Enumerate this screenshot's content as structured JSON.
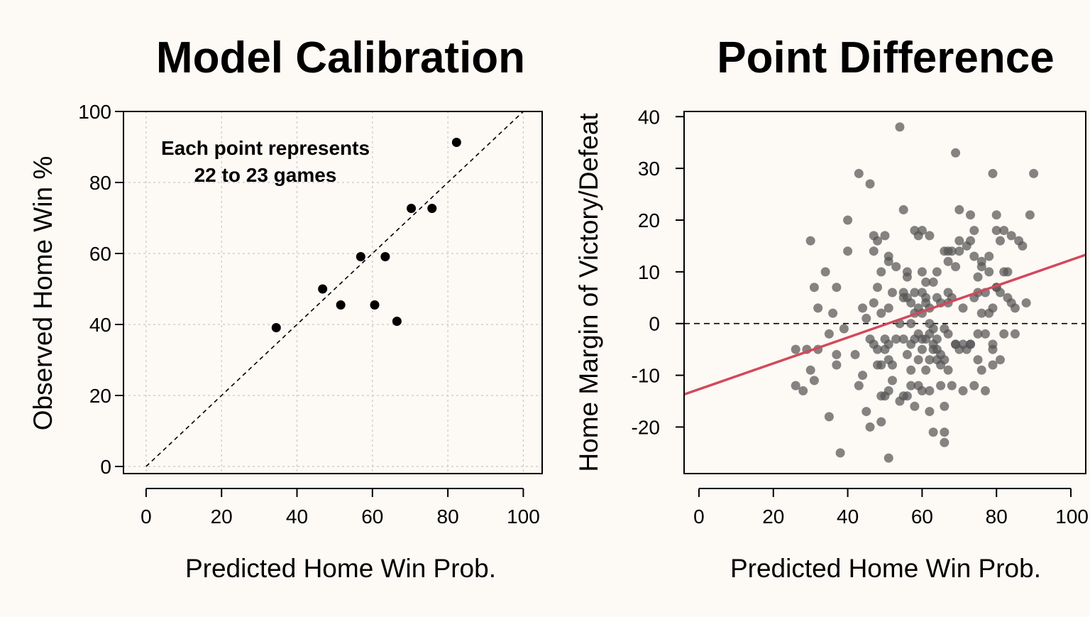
{
  "chart_data": [
    {
      "type": "scatter",
      "title": "Model Calibration",
      "xlabel": "Predicted Home Win Prob.",
      "ylabel": "Observed Home Win %",
      "xlim": [
        -6,
        105
      ],
      "ylim": [
        -2,
        100
      ],
      "x_ticks": [
        "0",
        "20",
        "40",
        "60",
        "80",
        "100"
      ],
      "y_ticks": [
        "0",
        "20",
        "40",
        "60",
        "80",
        "100"
      ],
      "grid": true,
      "reference_line": "y = x (dashed)",
      "annotation": [
        "Each point represents",
        "22 to 23 games"
      ],
      "point_color": "#000000",
      "points": [
        {
          "x": 34.5,
          "y": 39.1
        },
        {
          "x": 46.8,
          "y": 50.0
        },
        {
          "x": 51.6,
          "y": 45.5
        },
        {
          "x": 56.9,
          "y": 59.1
        },
        {
          "x": 60.6,
          "y": 45.5
        },
        {
          "x": 63.4,
          "y": 59.1
        },
        {
          "x": 66.5,
          "y": 40.9
        },
        {
          "x": 70.3,
          "y": 72.7
        },
        {
          "x": 75.8,
          "y": 72.7
        },
        {
          "x": 82.3,
          "y": 91.3
        }
      ]
    },
    {
      "type": "scatter",
      "title": "Point Difference",
      "xlabel": "Predicted Home Win Prob.",
      "ylabel": "Home Margin of Victory/Defeat",
      "xlim": [
        -4,
        104
      ],
      "ylim": [
        -29,
        41
      ],
      "x_ticks": [
        "0",
        "20",
        "40",
        "60",
        "80",
        "100"
      ],
      "y_ticks": [
        "40",
        "30",
        "20",
        "10",
        "0",
        "-10",
        "-20"
      ],
      "grid": false,
      "zero_line": "dashed at y = 0",
      "point_color": "#555555",
      "fit_line": {
        "color": "#d1495b",
        "intercept": -12.7,
        "slope": 0.25
      },
      "points": [
        [
          26,
          -5
        ],
        [
          26,
          -12
        ],
        [
          28,
          -13
        ],
        [
          29,
          -5
        ],
        [
          30,
          16
        ],
        [
          30,
          -9
        ],
        [
          31,
          -11
        ],
        [
          31,
          7
        ],
        [
          32,
          3
        ],
        [
          32,
          -5
        ],
        [
          34,
          10
        ],
        [
          35,
          -18
        ],
        [
          35,
          -2
        ],
        [
          36,
          2
        ],
        [
          37,
          -8
        ],
        [
          37,
          7
        ],
        [
          37,
          -6
        ],
        [
          38,
          -25
        ],
        [
          39,
          -1
        ],
        [
          40,
          20
        ],
        [
          40,
          14
        ],
        [
          42,
          -6
        ],
        [
          43,
          29
        ],
        [
          43,
          -12
        ],
        [
          44,
          3
        ],
        [
          44,
          -10
        ],
        [
          45,
          -17
        ],
        [
          45,
          1
        ],
        [
          46,
          -3
        ],
        [
          46,
          -20
        ],
        [
          46,
          27
        ],
        [
          47,
          17
        ],
        [
          47,
          14
        ],
        [
          47,
          4
        ],
        [
          47,
          -4
        ],
        [
          48,
          -5
        ],
        [
          48,
          -8
        ],
        [
          48,
          7
        ],
        [
          48,
          16
        ],
        [
          49,
          2
        ],
        [
          49,
          -19
        ],
        [
          49,
          -8
        ],
        [
          49,
          10
        ],
        [
          49,
          -14
        ],
        [
          50,
          -14
        ],
        [
          50,
          17
        ],
        [
          50,
          -5
        ],
        [
          50,
          -3
        ],
        [
          51,
          3
        ],
        [
          51,
          13
        ],
        [
          51,
          -4
        ],
        [
          51,
          -7
        ],
        [
          51,
          -13
        ],
        [
          51,
          -26
        ],
        [
          51,
          12
        ],
        [
          52,
          6
        ],
        [
          52,
          -11
        ],
        [
          52,
          -8
        ],
        [
          53,
          11
        ],
        [
          53,
          -3
        ],
        [
          54,
          -15
        ],
        [
          54,
          0
        ],
        [
          54,
          38
        ],
        [
          55,
          6
        ],
        [
          55,
          5
        ],
        [
          55,
          -3
        ],
        [
          55,
          22
        ],
        [
          55,
          -14
        ],
        [
          56,
          9
        ],
        [
          56,
          -14
        ],
        [
          56,
          5
        ],
        [
          56,
          -6
        ],
        [
          56,
          10
        ],
        [
          57,
          -12
        ],
        [
          57,
          4
        ],
        [
          57,
          -4
        ],
        [
          57,
          -9
        ],
        [
          57,
          0
        ],
        [
          58,
          18
        ],
        [
          58,
          2
        ],
        [
          58,
          -3
        ],
        [
          58,
          6
        ],
        [
          58,
          -16
        ],
        [
          59,
          17
        ],
        [
          59,
          -12
        ],
        [
          59,
          3
        ],
        [
          59,
          -2
        ],
        [
          59,
          -7
        ],
        [
          60,
          18
        ],
        [
          60,
          -5
        ],
        [
          60,
          6
        ],
        [
          60,
          10
        ],
        [
          60,
          -3
        ],
        [
          60,
          -13
        ],
        [
          60,
          2
        ],
        [
          61,
          -9
        ],
        [
          61,
          8
        ],
        [
          61,
          -3
        ],
        [
          61,
          5
        ],
        [
          61,
          4
        ],
        [
          62,
          -7
        ],
        [
          62,
          17
        ],
        [
          62,
          0
        ],
        [
          62,
          -13
        ],
        [
          62,
          -17
        ],
        [
          62,
          -2
        ],
        [
          62,
          3
        ],
        [
          63,
          -5
        ],
        [
          63,
          8
        ],
        [
          63,
          -4
        ],
        [
          63,
          -1
        ],
        [
          63,
          -21
        ],
        [
          64,
          -3
        ],
        [
          64,
          5
        ],
        [
          64,
          10
        ],
        [
          64,
          -5
        ],
        [
          64,
          -7
        ],
        [
          65,
          -12
        ],
        [
          65,
          -8
        ],
        [
          65,
          -6
        ],
        [
          65,
          4
        ],
        [
          66,
          -21
        ],
        [
          66,
          -7
        ],
        [
          66,
          -16
        ],
        [
          66,
          14
        ],
        [
          66,
          -23
        ],
        [
          66,
          -1
        ],
        [
          67,
          12
        ],
        [
          67,
          4
        ],
        [
          67,
          6
        ],
        [
          67,
          -2
        ],
        [
          67,
          -9
        ],
        [
          67,
          14
        ],
        [
          68,
          -12
        ],
        [
          68,
          5
        ],
        [
          68,
          14
        ],
        [
          69,
          33
        ],
        [
          69,
          -4
        ],
        [
          69,
          11
        ],
        [
          69,
          -4
        ],
        [
          70,
          16
        ],
        [
          70,
          14
        ],
        [
          70,
          22
        ],
        [
          70,
          -5
        ],
        [
          71,
          -13
        ],
        [
          71,
          3
        ],
        [
          71,
          -4
        ],
        [
          72,
          -5
        ],
        [
          72,
          15
        ],
        [
          73,
          16
        ],
        [
          73,
          -4
        ],
        [
          73,
          21
        ],
        [
          73,
          -4
        ],
        [
          74,
          5
        ],
        [
          74,
          13
        ],
        [
          74,
          -12
        ],
        [
          74,
          18
        ],
        [
          75,
          9
        ],
        [
          75,
          -7
        ],
        [
          75,
          -2
        ],
        [
          75,
          6
        ],
        [
          76,
          12
        ],
        [
          76,
          2
        ],
        [
          76,
          -9
        ],
        [
          76,
          11
        ],
        [
          77,
          -2
        ],
        [
          77,
          -13
        ],
        [
          77,
          6
        ],
        [
          78,
          2
        ],
        [
          78,
          10
        ],
        [
          78,
          13
        ],
        [
          79,
          29
        ],
        [
          79,
          -8
        ],
        [
          79,
          -4
        ],
        [
          79,
          3
        ],
        [
          79,
          -5
        ],
        [
          80,
          18
        ],
        [
          80,
          21
        ],
        [
          80,
          7
        ],
        [
          80,
          7
        ],
        [
          81,
          16
        ],
        [
          81,
          6
        ],
        [
          81,
          -7
        ],
        [
          82,
          -2
        ],
        [
          82,
          18
        ],
        [
          82,
          10
        ],
        [
          83,
          10
        ],
        [
          83,
          5
        ],
        [
          84,
          4
        ],
        [
          84,
          17
        ],
        [
          85,
          3
        ],
        [
          85,
          -2
        ],
        [
          86,
          16
        ],
        [
          87,
          15
        ],
        [
          88,
          4
        ],
        [
          89,
          21
        ],
        [
          90,
          29
        ]
      ]
    }
  ]
}
